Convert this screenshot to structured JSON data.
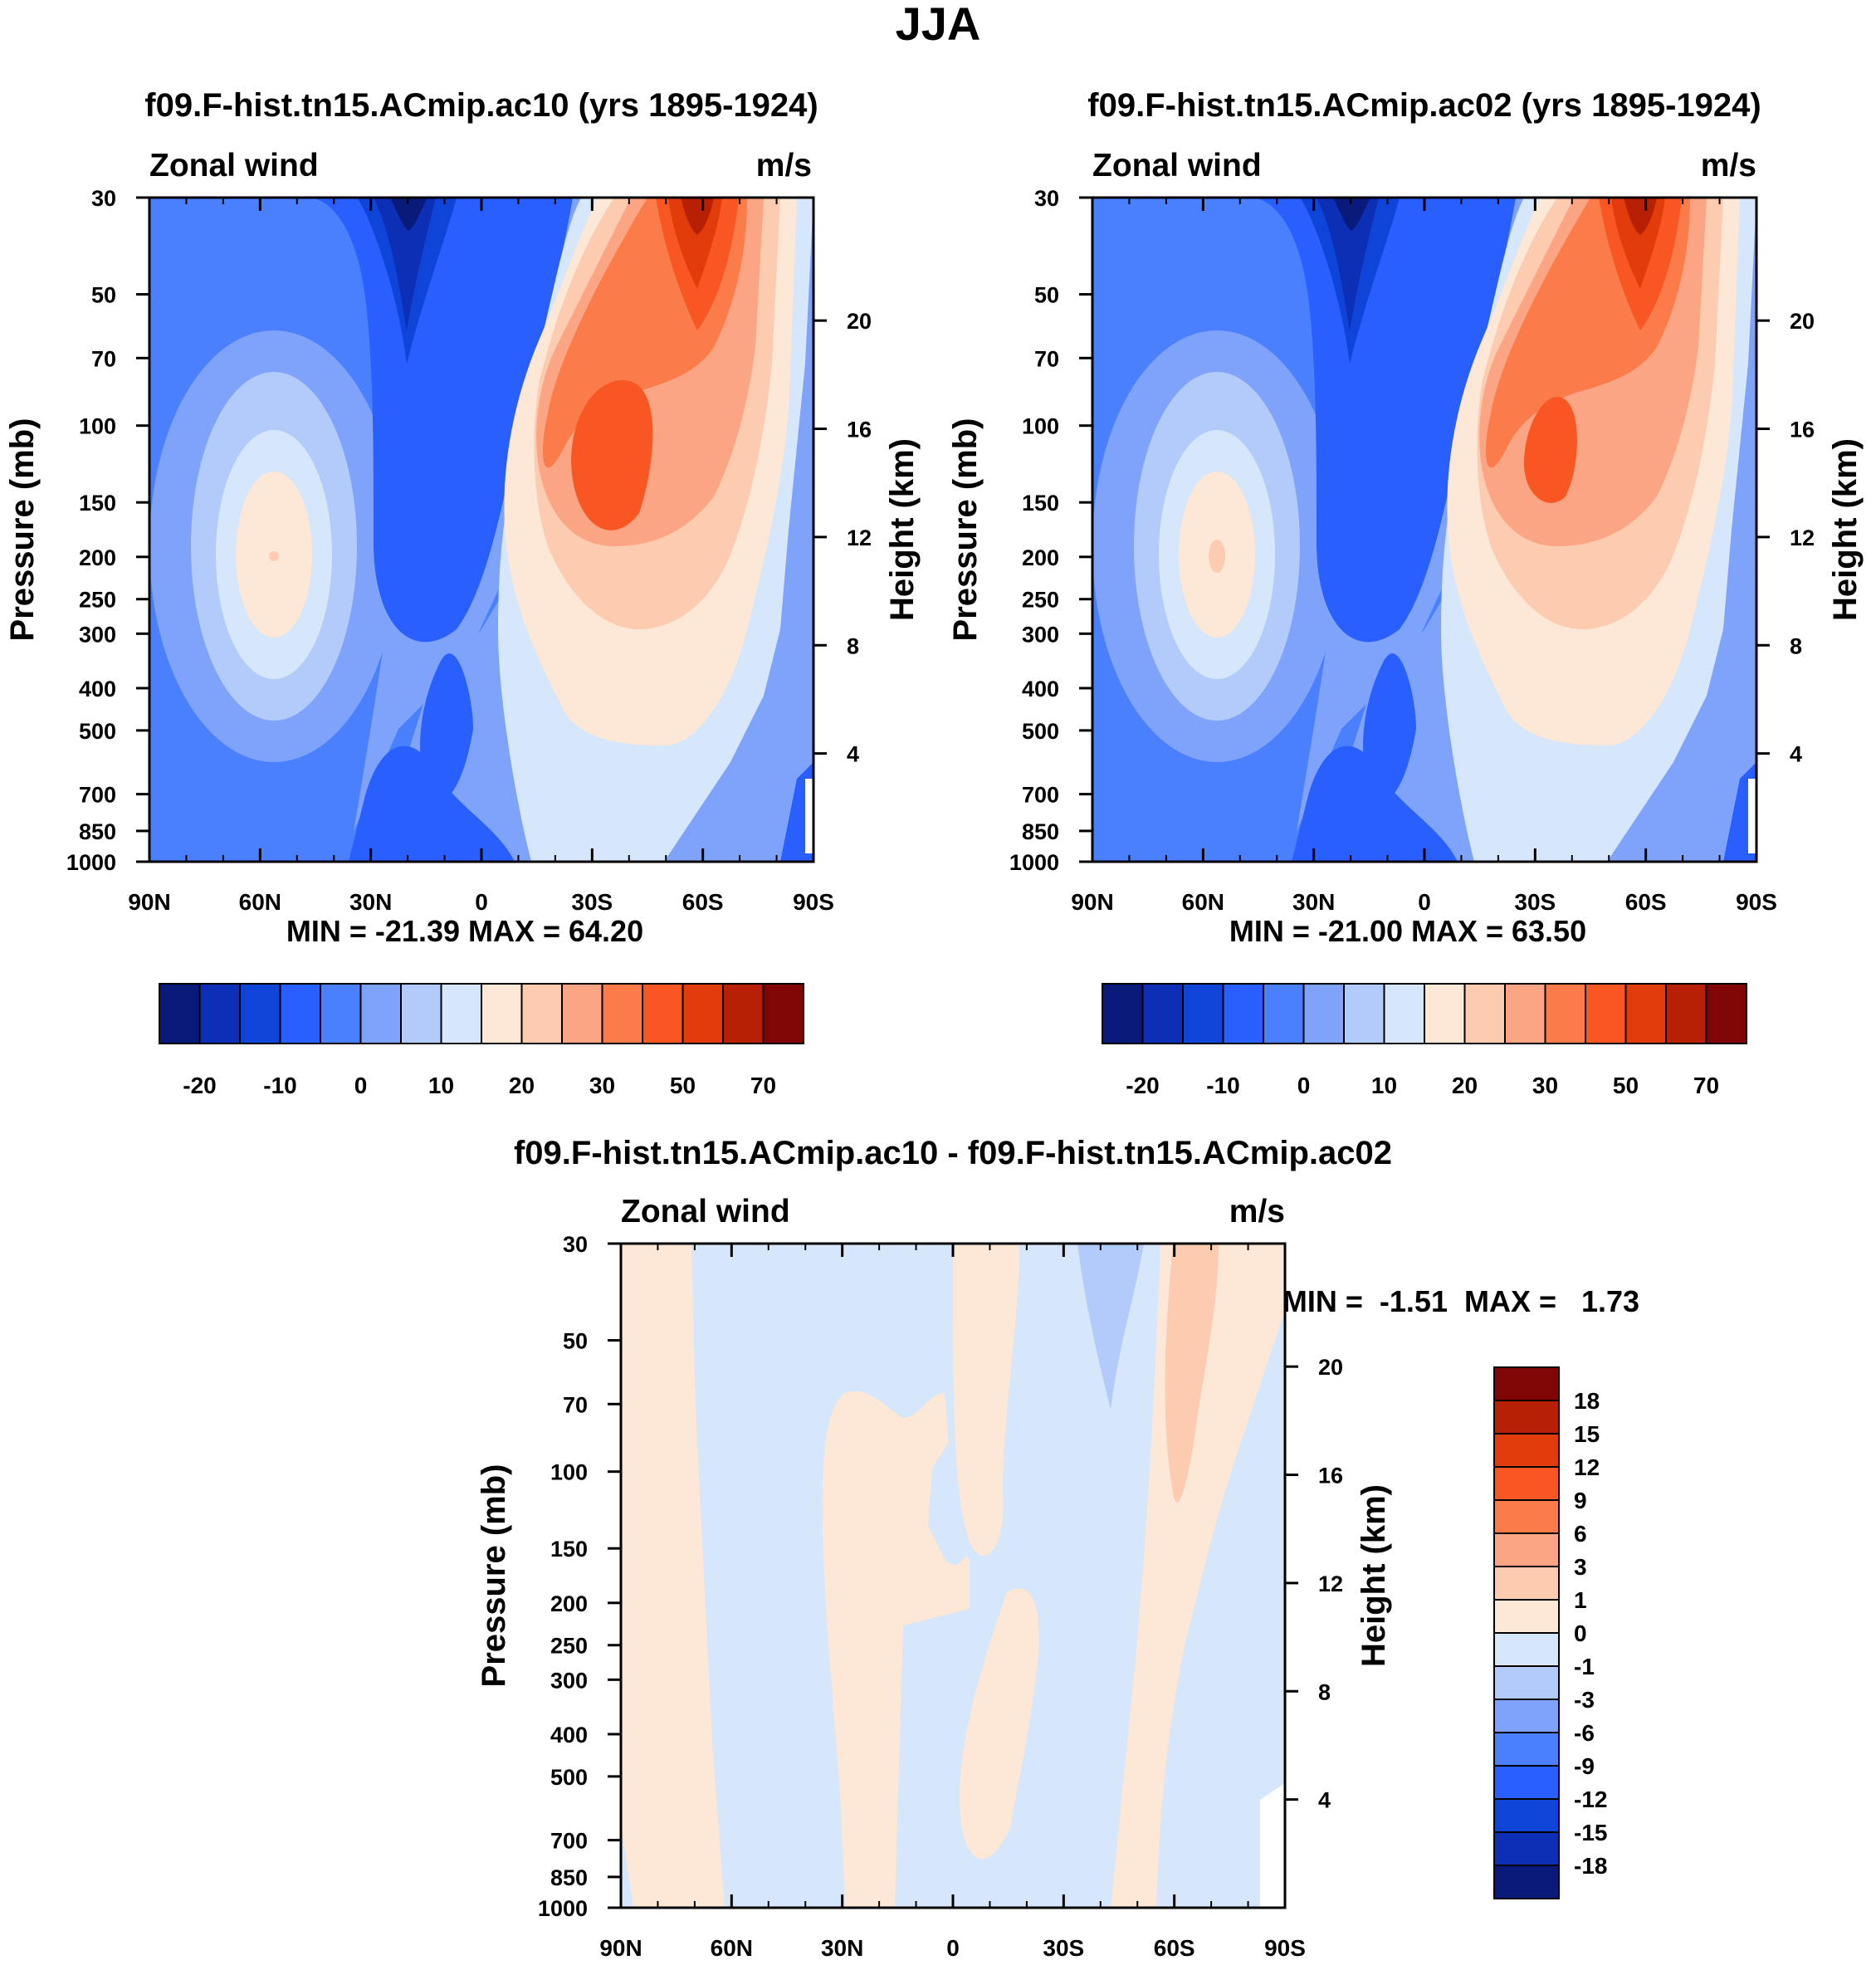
{
  "figure_title": "JJA",
  "colors": {
    "abs_levels": [
      "#0a1a7a",
      "#0c2fb5",
      "#0f44d8",
      "#2a5fff",
      "#4a7ffe",
      "#7fa3fb",
      "#b3cbfa",
      "#d6e6fb",
      "#fde7d6",
      "#fccbb0",
      "#fba584",
      "#fb7c4a",
      "#f85724",
      "#e23b0c",
      "#b82005",
      "#800505"
    ],
    "diff_levels": [
      "#0a1a7a",
      "#0c2fb5",
      "#0f44d8",
      "#2a5fff",
      "#4a7ffe",
      "#7fa3fb",
      "#b3cbfa",
      "#d6e6fb",
      "#fde7d6",
      "#fccbb0",
      "#fba584",
      "#fb7c4a",
      "#f85724",
      "#e23b0c",
      "#b82005",
      "#800505"
    ]
  },
  "chart_data": [
    {
      "type": "contour",
      "id": "panel-ac10",
      "title": "f09.F-hist.tn15.ACmip.ac10 (yrs 1895-1924)",
      "left_string": "Zonal wind",
      "right_string": "m/s",
      "ylabel": "Pressure (mb)",
      "ylabel_right": "Height (km)",
      "x_ticks": [
        "90N",
        "60N",
        "30N",
        "0",
        "30S",
        "60S",
        "90S"
      ],
      "xlim": [
        90,
        -90
      ],
      "y_ticks": [
        "30",
        "50",
        "70",
        "100",
        "150",
        "200",
        "250",
        "300",
        "400",
        "500",
        "700",
        "850",
        "1000"
      ],
      "ylim_mb": [
        1000,
        30
      ],
      "y2_ticks": [
        "20",
        "16",
        "12",
        "8",
        "4"
      ],
      "stats": "MIN = -21.39  MAX =  64.20",
      "min": -21.39,
      "max": 64.2,
      "colorbar_labels": [
        "-20",
        "-10",
        "0",
        "10",
        "20",
        "30",
        "50",
        "70"
      ]
    },
    {
      "type": "contour",
      "id": "panel-ac02",
      "title": "f09.F-hist.tn15.ACmip.ac02 (yrs 1895-1924)",
      "left_string": "Zonal wind",
      "right_string": "m/s",
      "ylabel": "Pressure (mb)",
      "ylabel_right": "Height (km)",
      "x_ticks": [
        "90N",
        "60N",
        "30N",
        "0",
        "30S",
        "60S",
        "90S"
      ],
      "xlim": [
        90,
        -90
      ],
      "y_ticks": [
        "30",
        "50",
        "70",
        "100",
        "150",
        "200",
        "250",
        "300",
        "400",
        "500",
        "700",
        "850",
        "1000"
      ],
      "ylim_mb": [
        1000,
        30
      ],
      "y2_ticks": [
        "20",
        "16",
        "12",
        "8",
        "4"
      ],
      "stats": "MIN = -21.00  MAX =  63.50",
      "min": -21.0,
      "max": 63.5,
      "colorbar_labels": [
        "-20",
        "-10",
        "0",
        "10",
        "20",
        "30",
        "50",
        "70"
      ]
    },
    {
      "type": "contour",
      "id": "panel-diff",
      "title": "f09.F-hist.tn15.ACmip.ac10 - f09.F-hist.tn15.ACmip.ac02",
      "left_string": "Zonal wind",
      "right_string": "m/s",
      "ylabel": "Pressure (mb)",
      "ylabel_right": "Height (km)",
      "x_ticks": [
        "90N",
        "60N",
        "30N",
        "0",
        "30S",
        "60S",
        "90S"
      ],
      "xlim": [
        90,
        -90
      ],
      "y_ticks": [
        "30",
        "50",
        "70",
        "100",
        "150",
        "200",
        "250",
        "300",
        "400",
        "500",
        "700",
        "850",
        "1000"
      ],
      "ylim_mb": [
        1000,
        30
      ],
      "y2_ticks": [
        "20",
        "16",
        "12",
        "8",
        "4"
      ],
      "stats": "MIN =  -1.51  MAX =   1.73",
      "min": -1.51,
      "max": 1.73,
      "colorbar_labels": [
        "18",
        "15",
        "12",
        "9",
        "6",
        "3",
        "1",
        "0",
        "-1",
        "-3",
        "-6",
        "-9",
        "-12",
        "-15",
        "-18"
      ]
    }
  ]
}
